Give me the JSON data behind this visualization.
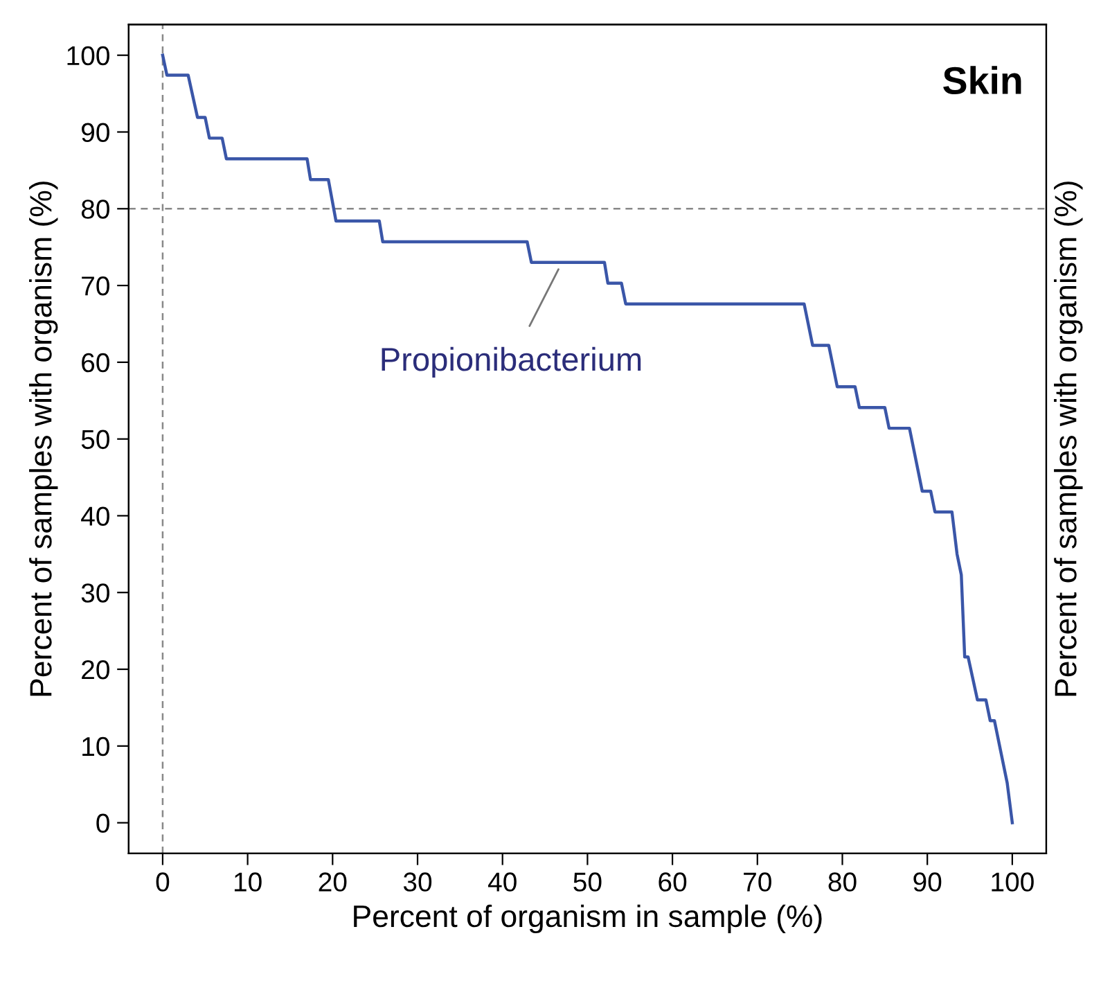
{
  "chart_data": {
    "type": "line",
    "title": "Skin",
    "xlabel": "Percent of organism in sample (%)",
    "ylabel": "Percent of samples with organism (%)",
    "y2label": "Percent of samples with organism (%)",
    "series": [
      {
        "color": "#3a56a8",
        "x": [
          0,
          0.5,
          3.0,
          4.1,
          5.0,
          5.5,
          7.0,
          7.5,
          17.0,
          17.4,
          19.5,
          20.4,
          25.5,
          25.9,
          42.9,
          43.4,
          52.0,
          52.4,
          54.0,
          54.5,
          75.5,
          76.5,
          78.4,
          79.4,
          81.5,
          82.0,
          85.0,
          85.5,
          87.9,
          89.4,
          90.4,
          90.9,
          92.9,
          93.5,
          94.0,
          94.4,
          94.8,
          95.9,
          96.9,
          97.4,
          97.9,
          99.4,
          100
        ],
        "values": [
          100,
          97.4,
          97.4,
          91.9,
          91.9,
          89.2,
          89.2,
          86.5,
          86.5,
          83.8,
          83.8,
          78.4,
          78.4,
          75.7,
          75.7,
          73.0,
          73.0,
          70.3,
          70.3,
          67.6,
          67.6,
          62.2,
          62.2,
          56.8,
          56.8,
          54.1,
          54.1,
          51.4,
          51.4,
          43.2,
          43.2,
          40.5,
          40.5,
          35.0,
          32.3,
          21.6,
          21.6,
          16.0,
          16.0,
          13.3,
          13.3,
          5.2,
          0
        ]
      }
    ],
    "annotations": [
      {
        "text": "Propionibacterium",
        "x": 47,
        "y": 73
      }
    ],
    "ref_lines": [
      {
        "axis": "x",
        "value": 0,
        "color": "#888888",
        "line_style": "dashed"
      },
      {
        "axis": "y",
        "value": 80,
        "color": "#888888",
        "line_style": "dashed"
      }
    ],
    "xlim": [
      -4,
      104
    ],
    "ylim": [
      -4,
      104
    ],
    "xticks": [
      0,
      10,
      20,
      30,
      40,
      50,
      60,
      70,
      80,
      90,
      100
    ],
    "yticks": [
      0,
      10,
      20,
      30,
      40,
      50,
      60,
      70,
      80,
      90,
      100
    ],
    "grid": false,
    "legend": false,
    "marker": "none",
    "line_style": "solid"
  }
}
